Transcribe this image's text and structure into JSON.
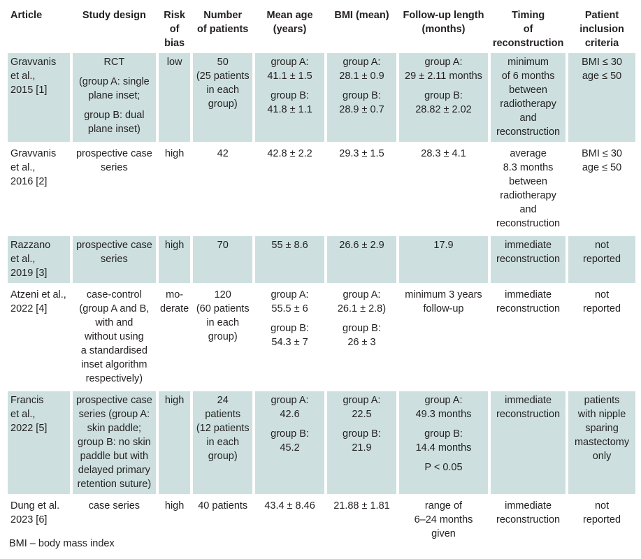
{
  "headers": [
    [
      "Article"
    ],
    [
      "Study design"
    ],
    [
      "Risk",
      "of",
      "bias"
    ],
    [
      "Number",
      "of patients"
    ],
    [
      "Mean age",
      "(years)"
    ],
    [
      "BMI (mean)"
    ],
    [
      "Follow-up length",
      "(months)"
    ],
    [
      "Timing",
      "of",
      "reconstruction"
    ],
    [
      "Patient",
      "inclusion",
      "criteria"
    ]
  ],
  "rows": [
    {
      "shade": true,
      "cells": [
        [
          [
            "Gravvanis",
            "et al.,",
            "2015 [1]"
          ]
        ],
        [
          [
            "RCT"
          ],
          [
            "(group A: single",
            "plane inset;"
          ],
          [
            "group B: dual",
            "plane inset)"
          ]
        ],
        [
          [
            "low"
          ]
        ],
        [
          [
            "50",
            "(25 patients",
            "in each",
            "group)"
          ]
        ],
        [
          [
            "group A:",
            "41.1 ± 1.5"
          ],
          [
            "group B:",
            "41.8 ± 1.1"
          ]
        ],
        [
          [
            "group A:",
            "28.1 ± 0.9"
          ],
          [
            "group B:",
            "28.9 ± 0.7"
          ]
        ],
        [
          [
            "group A:",
            "29 ± 2.11 months"
          ],
          [
            "group B:",
            "28.82 ± 2.02"
          ]
        ],
        [
          [
            "minimum",
            "of 6 months",
            "between",
            "radiotherapy",
            "and",
            "reconstruction"
          ]
        ],
        [
          [
            "BMI ≤ 30",
            "age ≤ 50"
          ]
        ]
      ]
    },
    {
      "shade": false,
      "cells": [
        [
          [
            "Gravvanis",
            "et al.,",
            "2016 [2]"
          ]
        ],
        [
          [
            "prospective case",
            "series"
          ]
        ],
        [
          [
            "high"
          ]
        ],
        [
          [
            "42"
          ]
        ],
        [
          [
            "42.8 ± 2.2"
          ]
        ],
        [
          [
            "29.3 ± 1.5"
          ]
        ],
        [
          [
            "28.3 ± 4.1"
          ]
        ],
        [
          [
            "average",
            "8.3 months",
            "between",
            "radiotherapy",
            "and",
            "reconstruction"
          ]
        ],
        [
          [
            "BMI ≤ 30",
            "age ≤ 50"
          ]
        ]
      ]
    },
    {
      "shade": true,
      "cells": [
        [
          [
            "Razzano",
            "et al.,",
            "2019 [3]"
          ]
        ],
        [
          [
            "prospective case",
            "series"
          ]
        ],
        [
          [
            "high"
          ]
        ],
        [
          [
            "70"
          ]
        ],
        [
          [
            "55 ± 8.6"
          ]
        ],
        [
          [
            "26.6 ± 2.9"
          ]
        ],
        [
          [
            "17.9"
          ]
        ],
        [
          [
            "immediate",
            "reconstruction"
          ]
        ],
        [
          [
            "not",
            "reported"
          ]
        ]
      ]
    },
    {
      "shade": false,
      "cells": [
        [
          [
            "Atzeni et al.,",
            "2022 [4]"
          ]
        ],
        [
          [
            "case-control",
            "(group A and B,",
            "with and",
            "without using",
            "a standardised",
            "inset algorithm",
            "respectively)"
          ]
        ],
        [
          [
            "mo-",
            "derate"
          ]
        ],
        [
          [
            "120",
            "(60 patients",
            "in each",
            "group)"
          ]
        ],
        [
          [
            "group A:",
            "55.5 ± 6"
          ],
          [
            "group B:",
            "54.3 ± 7"
          ]
        ],
        [
          [
            "group A:",
            "26.1 ± 2.8)"
          ],
          [
            "group B:",
            "26 ± 3"
          ]
        ],
        [
          [
            "minimum 3 years",
            "follow-up"
          ]
        ],
        [
          [
            "immediate",
            "reconstruction"
          ]
        ],
        [
          [
            "not",
            "reported"
          ]
        ]
      ]
    },
    {
      "shade": true,
      "cells": [
        [
          [
            "Francis",
            "et al.,",
            "2022 [5]"
          ]
        ],
        [
          [
            "prospective case",
            "series (group A:",
            "skin paddle;",
            "group B: no skin",
            "paddle but with",
            "delayed primary",
            "retention suture)"
          ]
        ],
        [
          [
            "high"
          ]
        ],
        [
          [
            "24",
            "patients",
            "(12 patients",
            "in each",
            "group)"
          ]
        ],
        [
          [
            "group A:",
            "42.6"
          ],
          [
            "group B:",
            "45.2"
          ]
        ],
        [
          [
            "group A:",
            "22.5"
          ],
          [
            "group B:",
            "21.9"
          ]
        ],
        [
          [
            "group A:",
            "49.3 months"
          ],
          [
            "group B:",
            "14.4 months"
          ],
          [
            "P < 0.05"
          ]
        ],
        [
          [
            "immediate",
            "reconstruction"
          ]
        ],
        [
          [
            "patients",
            "with nipple",
            "sparing",
            "mastectomy",
            "only"
          ]
        ]
      ]
    },
    {
      "shade": false,
      "cells": [
        [
          [
            "Dung et al.",
            "2023 [6]"
          ]
        ],
        [
          [
            "case series"
          ]
        ],
        [
          [
            "high"
          ]
        ],
        [
          [
            "40 patients"
          ]
        ],
        [
          [
            "43.4 ± 8.46"
          ]
        ],
        [
          [
            "21.88 ± 1.81"
          ]
        ],
        [
          [
            "range of",
            "6–24 months",
            "given"
          ]
        ],
        [
          [
            "immediate",
            "reconstruction"
          ]
        ],
        [
          [
            "not",
            "reported"
          ]
        ]
      ]
    }
  ],
  "footnote": "BMI – body mass index"
}
